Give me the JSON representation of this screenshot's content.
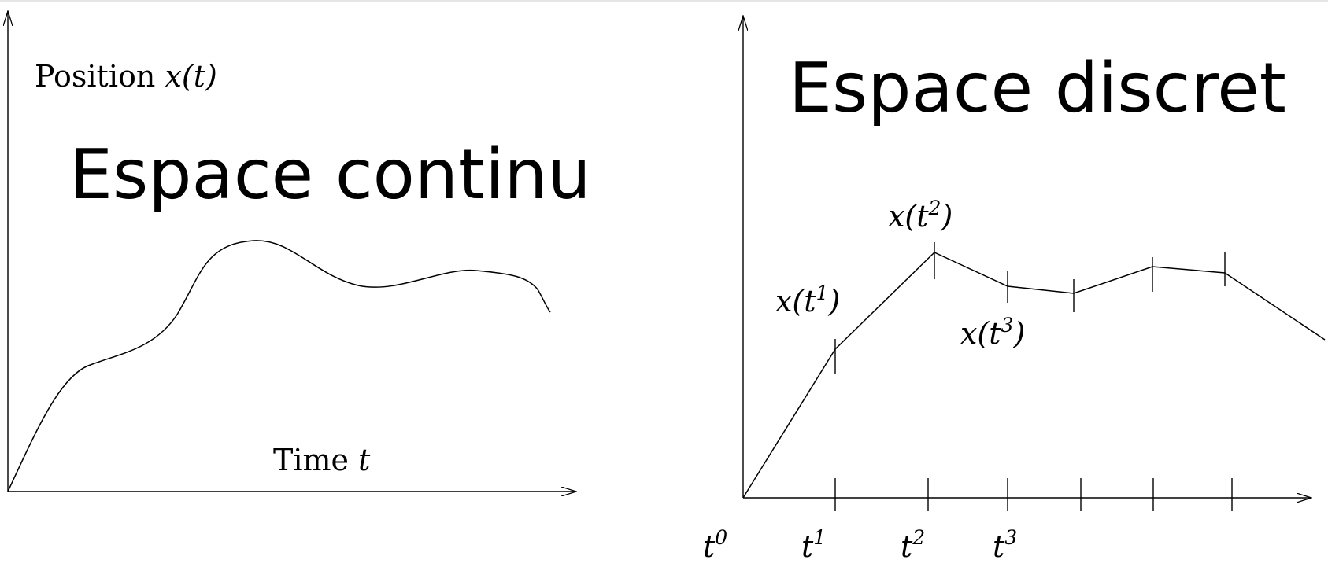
{
  "colors": {
    "ink": "#000000",
    "background": "#ffffff",
    "top_rule": "#e6e6e6"
  },
  "continuous": {
    "title": "Espace continu",
    "y_axis_label": {
      "word": "Position",
      "math": "x(t)"
    },
    "x_axis_label": {
      "word": "Time",
      "math": "t"
    }
  },
  "discrete": {
    "title": "Espace discret",
    "point_labels": [
      {
        "base": "x(t",
        "sup": "1",
        "close": ")"
      },
      {
        "base": "x(t",
        "sup": "2",
        "close": ")"
      },
      {
        "base": "x(t",
        "sup": "3",
        "close": ")"
      }
    ],
    "time_labels": [
      {
        "base": "t",
        "sup": "0"
      },
      {
        "base": "t",
        "sup": "1"
      },
      {
        "base": "t",
        "sup": "2"
      },
      {
        "base": "t",
        "sup": "3"
      }
    ]
  }
}
